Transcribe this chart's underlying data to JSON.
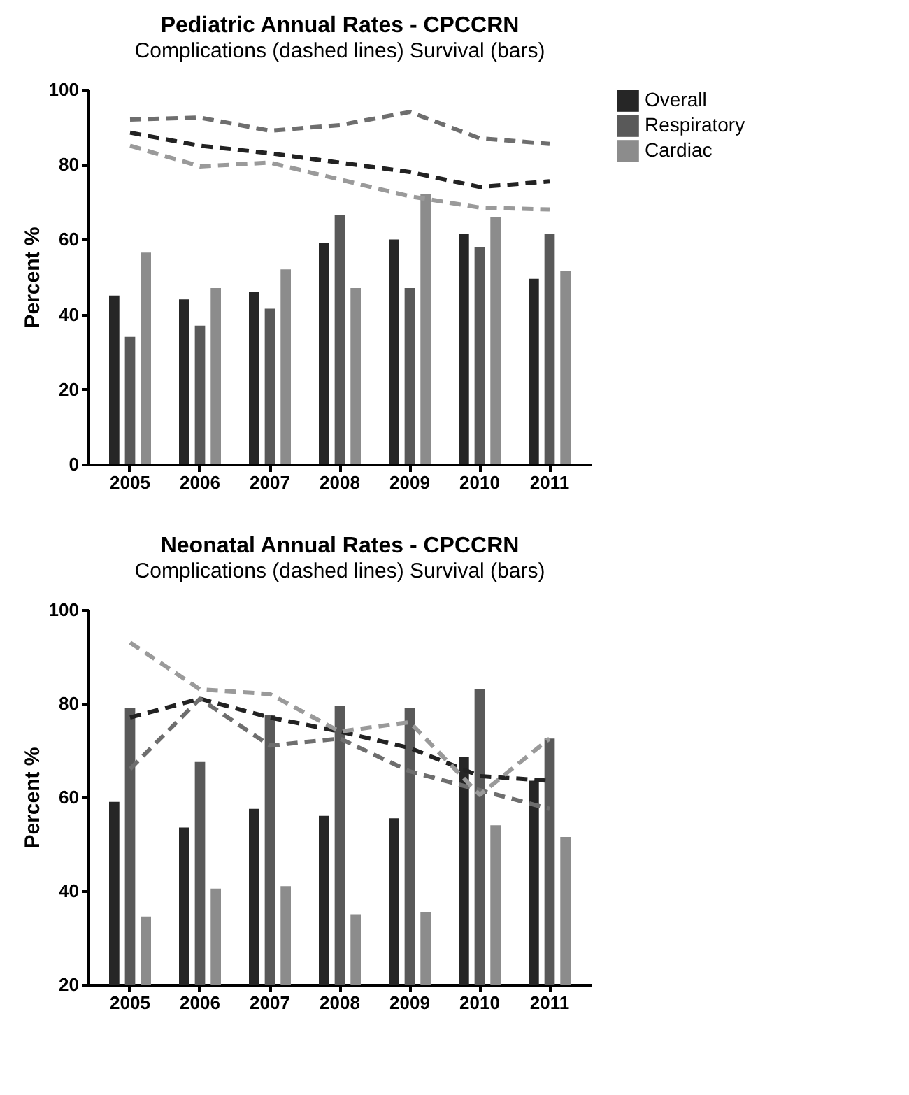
{
  "chart_data": [
    {
      "type": "bar",
      "title": "Pediatric Annual  Rates - CPCCRN",
      "subtitle": "Complications  (dashed lines) Survival (bars)",
      "ylabel": "Percent %",
      "categories": [
        "2005",
        "2006",
        "2007",
        "2008",
        "2009",
        "2010",
        "2011"
      ],
      "ylim": [
        0,
        100
      ],
      "yticks": [
        0,
        20,
        40,
        60,
        80,
        100
      ],
      "grid": false,
      "legend": "right",
      "series": [
        {
          "name": "Overall",
          "color": "#262626",
          "values": [
            45,
            44,
            46,
            59,
            60,
            61.5,
            49.5
          ]
        },
        {
          "name": "Respiratory",
          "color": "#595959",
          "values": [
            34,
            37,
            41.5,
            66.5,
            47,
            58,
            61.5
          ]
        },
        {
          "name": "Cardiac",
          "color": "#8c8c8c",
          "values": [
            56.5,
            47,
            52,
            47,
            72,
            66,
            51.5
          ]
        },
        {
          "type": "line",
          "line_style": "dashed",
          "color": "#222222",
          "values": [
            88.5,
            85,
            83,
            80.5,
            78,
            74,
            75.5
          ]
        },
        {
          "type": "line",
          "line_style": "dashed",
          "color": "#6e6e6e",
          "values": [
            92,
            92.5,
            89,
            90.5,
            94,
            87,
            85.5
          ]
        },
        {
          "type": "line",
          "line_style": "dashed",
          "color": "#9a9a9a",
          "values": [
            85,
            79.5,
            80.5,
            76,
            71.5,
            68.5,
            68
          ]
        }
      ]
    },
    {
      "type": "bar",
      "title": "Neonatal Annual Rates - CPCCRN",
      "subtitle": "Complications (dashed lines) Survival (bars)",
      "ylabel": "Percent %",
      "categories": [
        "2005",
        "2006",
        "2007",
        "2008",
        "2009",
        "2010",
        "2011"
      ],
      "ylim": [
        20,
        100
      ],
      "yticks": [
        20,
        40,
        60,
        80,
        100
      ],
      "grid": false,
      "legend": "right",
      "series": [
        {
          "name": "Overall",
          "color": "#262626",
          "values": [
            59,
            53.5,
            57.5,
            56,
            55.5,
            68.5,
            63.5
          ]
        },
        {
          "name": "Respiratory",
          "color": "#595959",
          "values": [
            79,
            67.5,
            77.5,
            79.5,
            79,
            83,
            72.5
          ]
        },
        {
          "name": "Cardiac",
          "color": "#8c8c8c",
          "values": [
            34.5,
            40.5,
            41,
            35,
            35.5,
            54,
            51.5
          ]
        },
        {
          "type": "line",
          "line_style": "dashed",
          "color": "#222222",
          "values": [
            77,
            81,
            77,
            74,
            70.5,
            64.5,
            63.5
          ]
        },
        {
          "type": "line",
          "line_style": "dashed",
          "color": "#6e6e6e",
          "values": [
            66,
            81,
            71,
            72.5,
            65.5,
            61.5,
            57.5
          ]
        },
        {
          "type": "line",
          "line_style": "dashed",
          "color": "#9a9a9a",
          "values": [
            93,
            83,
            82,
            74,
            76,
            60.5,
            72.5
          ]
        }
      ]
    }
  ]
}
